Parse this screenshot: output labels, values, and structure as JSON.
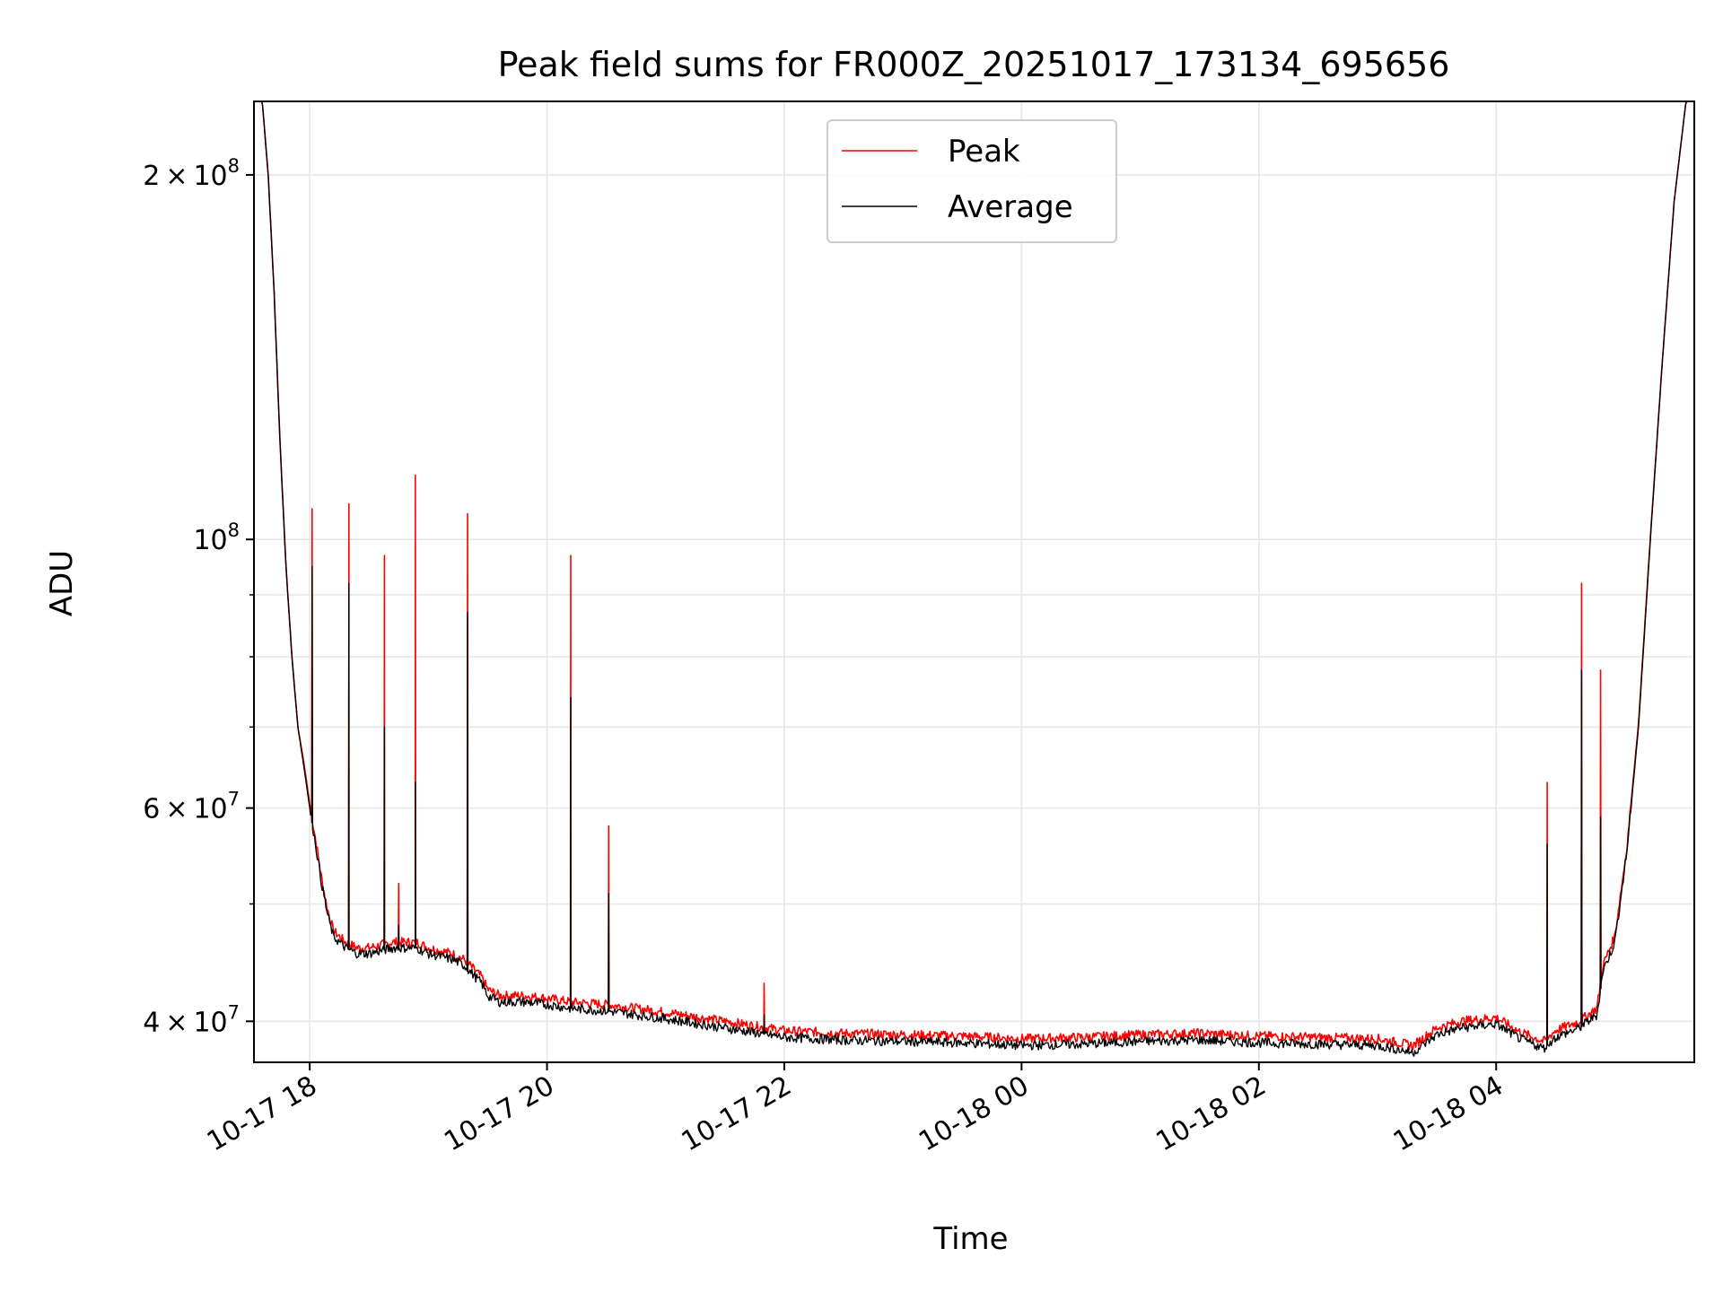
{
  "chart_data": {
    "type": "line",
    "title": "Peak field sums for FR000Z_20251017_173134_695656",
    "xlabel": "Time",
    "ylabel": "ADU",
    "yscale": "log",
    "ylim": [
      37000000,
      230000000
    ],
    "xlim_hours": [
      17.53,
      5.67
    ],
    "x_ticks": [
      {
        "label": "10-17 18",
        "hour": 18
      },
      {
        "label": "10-17 20",
        "hour": 20
      },
      {
        "label": "10-17 22",
        "hour": 22
      },
      {
        "label": "10-18 00",
        "hour": 24
      },
      {
        "label": "10-18 02",
        "hour": 26
      },
      {
        "label": "10-18 04",
        "hour": 28
      }
    ],
    "y_ticks": [
      {
        "base": "2",
        "exp": "8",
        "value": 200000000,
        "has_mantissa": true
      },
      {
        "base": "10",
        "exp": "8",
        "value": 100000000,
        "has_mantissa": false
      },
      {
        "base": "6",
        "exp": "7",
        "value": 60000000,
        "has_mantissa": true
      },
      {
        "base": "4",
        "exp": "7",
        "value": 40000000,
        "has_mantissa": true
      }
    ],
    "y_minor_ticks": [
      30000000,
      50000000,
      70000000,
      80000000,
      90000000
    ],
    "times_symbol": "×",
    "grid": true,
    "legend": {
      "placement": "top-center",
      "entries": [
        {
          "name": "Peak",
          "color": "#ff0000"
        },
        {
          "name": "Average",
          "color": "#000000"
        }
      ]
    },
    "series": [
      {
        "name": "Average",
        "color": "#000000",
        "x_hours": [
          17.53,
          17.6,
          17.65,
          17.7,
          17.75,
          17.8,
          17.85,
          17.9,
          17.95,
          18.0,
          18.05,
          18.1,
          18.15,
          18.2,
          18.3,
          18.4,
          18.5,
          18.7,
          18.9,
          19.0,
          19.2,
          19.3,
          19.45,
          19.5,
          19.6,
          19.8,
          20.0,
          20.2,
          20.5,
          21.0,
          21.5,
          22.0,
          22.5,
          23.0,
          23.5,
          24.0,
          24.5,
          25.0,
          25.5,
          26.0,
          26.5,
          27.0,
          27.3,
          27.5,
          27.7,
          28.0,
          28.2,
          28.4,
          28.5,
          28.7,
          28.85,
          28.9,
          29.0,
          29.1,
          29.2,
          29.3,
          29.4,
          29.5,
          29.6,
          29.67
        ],
        "values": [
          230000000,
          230000000,
          200000000,
          160000000,
          120000000,
          95000000,
          80000000,
          70000000,
          65000000,
          60000000,
          56000000,
          52000000,
          49000000,
          47000000,
          46000000,
          45500000,
          45500000,
          46000000,
          46000000,
          45500000,
          45000000,
          44500000,
          43000000,
          42000000,
          41500000,
          41500000,
          41300000,
          41000000,
          40800000,
          40200000,
          39500000,
          38800000,
          38600000,
          38500000,
          38400000,
          38200000,
          38300000,
          38500000,
          38600000,
          38400000,
          38300000,
          38200000,
          37700000,
          39000000,
          39500000,
          39800000,
          38700000,
          38000000,
          38800000,
          39500000,
          40500000,
          44000000,
          46500000,
          55000000,
          70000000,
          100000000,
          140000000,
          190000000,
          230000000,
          230000000
        ]
      },
      {
        "name": "Peak",
        "color": "#ff0000",
        "x_hours": [
          17.53,
          17.6,
          17.65,
          17.7,
          17.75,
          17.8,
          17.85,
          17.9,
          17.95,
          18.0,
          18.05,
          18.1,
          18.15,
          18.2,
          18.3,
          18.4,
          18.5,
          18.7,
          18.9,
          19.0,
          19.2,
          19.3,
          19.45,
          19.5,
          19.6,
          19.8,
          20.0,
          20.2,
          20.5,
          21.0,
          21.5,
          22.0,
          22.5,
          23.0,
          23.5,
          24.0,
          24.5,
          25.0,
          25.5,
          26.0,
          26.5,
          27.0,
          27.3,
          27.5,
          27.7,
          28.0,
          28.2,
          28.4,
          28.5,
          28.7,
          28.85,
          28.9,
          29.0,
          29.1,
          29.2,
          29.3,
          29.4,
          29.5,
          29.6,
          29.67
        ],
        "values": [
          230000000,
          230000000,
          200000000,
          160000000,
          120000000,
          95000000,
          80000000,
          70000000,
          65500000,
          60500000,
          56500000,
          52500000,
          49500000,
          47500000,
          46500000,
          46000000,
          46000000,
          46500000,
          46500000,
          46000000,
          45500000,
          45000000,
          43500000,
          42500000,
          42000000,
          42000000,
          41800000,
          41500000,
          41300000,
          40700000,
          40000000,
          39300000,
          39100000,
          39000000,
          38900000,
          38700000,
          38800000,
          39000000,
          39100000,
          38900000,
          38800000,
          38700000,
          38200000,
          39500000,
          40000000,
          40300000,
          39200000,
          38500000,
          39300000,
          40000000,
          41000000,
          44500000,
          47000000,
          55500000,
          70500000,
          100500000,
          140000000,
          190000000,
          230000000,
          230000000
        ]
      }
    ],
    "spikes": [
      {
        "hour": 18.02,
        "peak": 106000000,
        "average": 95000000
      },
      {
        "hour": 18.33,
        "peak": 107000000,
        "average": 92000000
      },
      {
        "hour": 18.63,
        "peak": 97000000,
        "average": 70000000
      },
      {
        "hour": 18.75,
        "peak": 52000000,
        "average": 48000000
      },
      {
        "hour": 18.89,
        "peak": 113000000,
        "average": 63000000
      },
      {
        "hour": 19.33,
        "peak": 105000000,
        "average": 87000000
      },
      {
        "hour": 20.2,
        "peak": 97000000,
        "average": 74000000
      },
      {
        "hour": 20.52,
        "peak": 58000000,
        "average": 51000000
      },
      {
        "hour": 21.83,
        "peak": 43000000,
        "average": 40500000
      },
      {
        "hour": 28.43,
        "peak": 63000000,
        "average": 56000000
      },
      {
        "hour": 28.72,
        "peak": 92000000,
        "average": 78000000
      },
      {
        "hour": 28.88,
        "peak": 78000000,
        "average": 59000000
      }
    ]
  }
}
